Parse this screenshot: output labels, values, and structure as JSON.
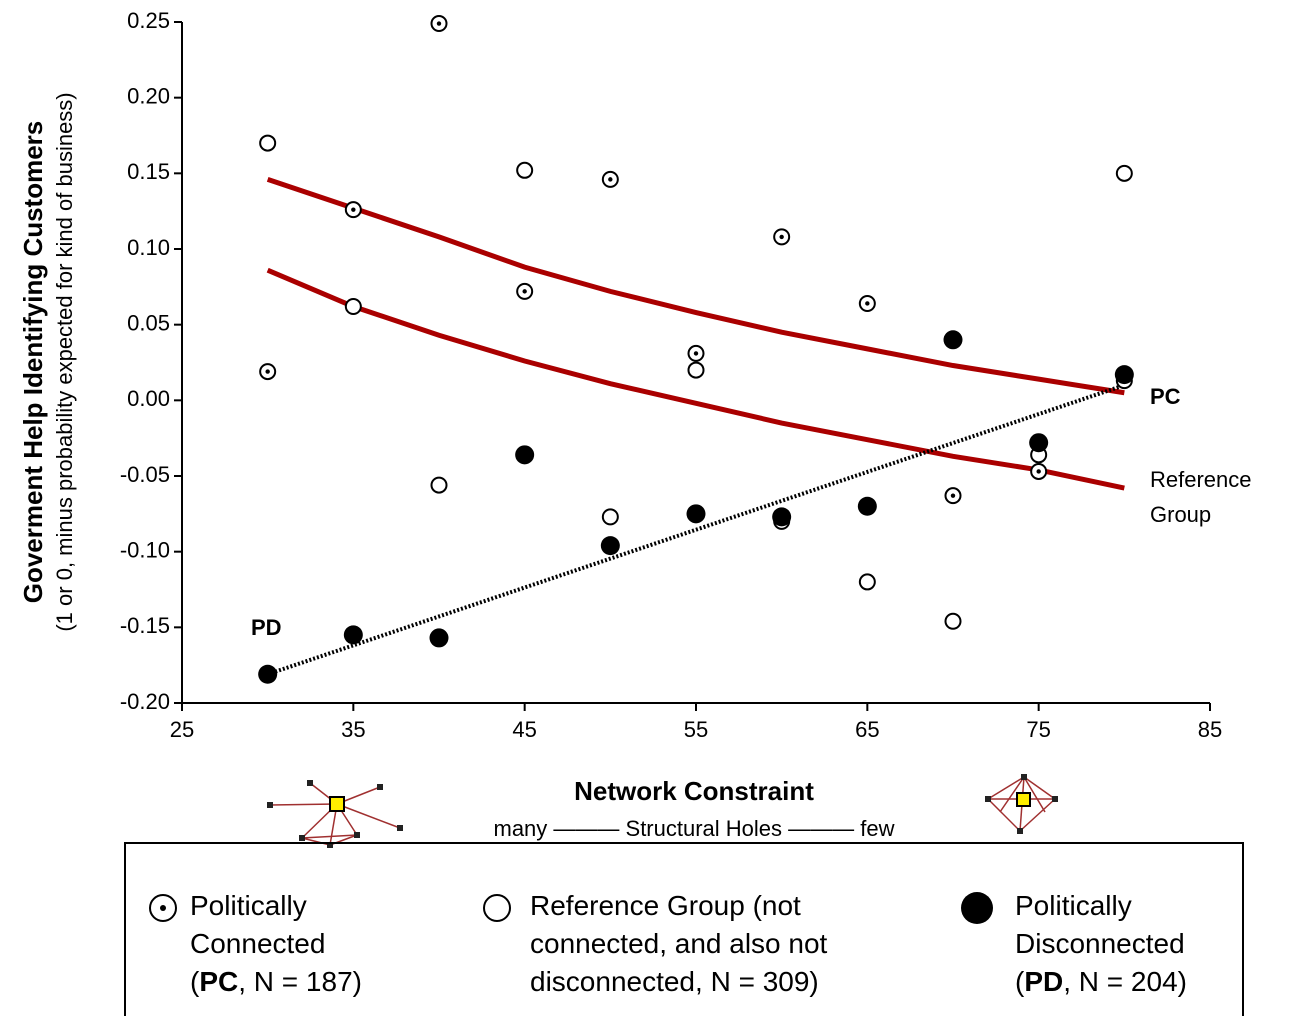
{
  "chart_data": {
    "type": "scatter",
    "y_title": "Goverment Help Identifying Customers",
    "y_subtitle": "(1 or 0, minus probability expected for kind of business)",
    "x_title": "Network Constraint",
    "x_subtitle": "many ——— Structural Holes ——— few",
    "xlim": [
      25,
      85
    ],
    "xticks": [
      25,
      35,
      45,
      55,
      65,
      75,
      85
    ],
    "ylim": [
      -0.2,
      0.25
    ],
    "yticks": [
      {
        "value": -0.2,
        "label": "-0.20"
      },
      {
        "value": -0.15,
        "label": "-0.15"
      },
      {
        "value": -0.1,
        "label": "-0.10"
      },
      {
        "value": -0.05,
        "label": "-0.05"
      },
      {
        "value": 0,
        "label": "0.00"
      },
      {
        "value": 0.05,
        "label": "0.05"
      },
      {
        "value": 0.1,
        "label": "0.10"
      },
      {
        "value": 0.15,
        "label": "0.15"
      },
      {
        "value": 0.2,
        "label": "0.20"
      },
      {
        "value": 0.25,
        "label": "0.25"
      }
    ],
    "series": [
      {
        "marker": "dot",
        "color": "#000000",
        "x": [
          30,
          35,
          40,
          45,
          50,
          55,
          60,
          65,
          70,
          75,
          80
        ],
        "values": [
          0.019,
          0.126,
          0.249,
          0.072,
          0.146,
          0.031,
          0.108,
          0.064,
          -0.063,
          -0.047,
          0.013
        ],
        "legend_lines": [
          [
            {
              "text": "Politically",
              "bold": false
            }
          ],
          [
            {
              "text": "Connected",
              "bold": false
            }
          ],
          [
            {
              "text": "(",
              "bold": false
            },
            {
              "text": "PC",
              "bold": true
            },
            {
              "text": ", N = 187)",
              "bold": false
            }
          ]
        ]
      },
      {
        "marker": "open",
        "color": "#000000",
        "x": [
          30,
          35,
          40,
          45,
          50,
          55,
          60,
          65,
          70,
          75,
          80
        ],
        "values": [
          0.17,
          0.062,
          -0.056,
          0.152,
          -0.077,
          0.02,
          -0.08,
          -0.12,
          -0.146,
          -0.036,
          0.15
        ],
        "legend_lines": [
          [
            {
              "text": "Reference Group (not",
              "bold": false
            }
          ],
          [
            {
              "text": "connected, and also not",
              "bold": false
            }
          ],
          [
            {
              "text": "disconnected, N = 309)",
              "bold": false
            }
          ]
        ]
      },
      {
        "marker": "filled",
        "color": "#000000",
        "x": [
          30,
          35,
          40,
          45,
          50,
          55,
          60,
          65,
          70,
          75,
          80
        ],
        "values": [
          -0.181,
          -0.155,
          -0.157,
          -0.036,
          -0.096,
          -0.075,
          -0.077,
          -0.07,
          0.04,
          -0.028,
          0.017
        ],
        "legend_lines": [
          [
            {
              "text": "Politically",
              "bold": false
            }
          ],
          [
            {
              "text": "Disconnected",
              "bold": false
            }
          ],
          [
            {
              "text": "(",
              "bold": false
            },
            {
              "text": "PD",
              "bold": true
            },
            {
              "text": ", N = 204)",
              "bold": false
            }
          ]
        ]
      }
    ],
    "fit_lines": [
      {
        "style": "solid",
        "color": "#aa0000",
        "x": [
          30,
          35,
          40,
          45,
          50,
          55,
          60,
          65,
          70,
          75,
          80
        ],
        "values": [
          0.146,
          0.127,
          0.108,
          0.088,
          0.072,
          0.058,
          0.045,
          0.034,
          0.023,
          0.014,
          0.005
        ]
      },
      {
        "style": "solid",
        "color": "#aa0000",
        "x": [
          30,
          35,
          40,
          45,
          50,
          55,
          60,
          65,
          70,
          75,
          80
        ],
        "values": [
          0.086,
          0.062,
          0.043,
          0.026,
          0.011,
          -0.002,
          -0.015,
          -0.026,
          -0.037,
          -0.046,
          -0.058
        ]
      },
      {
        "style": "dotted",
        "color": "#000000",
        "x": [
          30,
          80
        ],
        "values": [
          -0.181,
          0.01
        ]
      }
    ],
    "annotations": {
      "pc": "PC",
      "pd": "PD",
      "reference": [
        "Reference",
        "Group"
      ]
    }
  }
}
